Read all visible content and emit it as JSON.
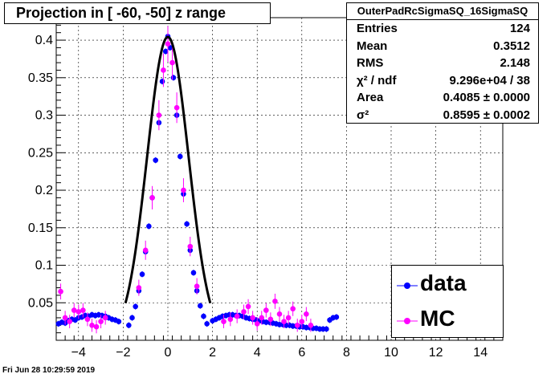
{
  "title": "Projection in [ -60, -50] z range",
  "stats": {
    "name": "OuterPadRcSigmaSQ_16SigmaSQ",
    "rows": [
      {
        "key": "Entries",
        "value": "124"
      },
      {
        "key": "Mean",
        "value": "0.3512"
      },
      {
        "key": "RMS",
        "value": "2.148"
      },
      {
        "key": "χ² / ndf",
        "value": "9.296e+04 / 38"
      },
      {
        "key": "Area",
        "value": "0.4085  ± 0.0000"
      },
      {
        "key": "σ²",
        "value": "0.8595  ± 0.0002"
      }
    ]
  },
  "legend": [
    {
      "label": "data",
      "color": "#0000ff"
    },
    {
      "label": "MC",
      "color": "#ff00ff"
    }
  ],
  "timestamp": "Fri Jun 28 10:29:59 2019",
  "chart_data": {
    "type": "scatter",
    "xlim": [
      -5,
      15
    ],
    "ylim": [
      0,
      0.43
    ],
    "xticks": [
      -4,
      -2,
      0,
      2,
      4,
      6,
      8,
      10,
      12,
      14
    ],
    "xtick_labels": [
      "−4",
      "−2",
      "0",
      "2",
      "4",
      "6",
      "8",
      "10",
      "12",
      "14"
    ],
    "yticks": [
      0.05,
      0.1,
      0.15,
      0.2,
      0.25,
      0.3,
      0.35,
      0.4
    ],
    "ytick_labels": [
      "0.05",
      "0.1",
      "0.15",
      "0.2",
      "0.25",
      "0.3",
      "0.35",
      "0.4"
    ],
    "grid": true,
    "fit_curve": {
      "type": "gaussian",
      "mean": 0.0,
      "area": 0.4085,
      "sigma2": 0.8595,
      "x_range": [
        -1.9,
        1.9
      ],
      "color": "#000000"
    },
    "series": [
      {
        "name": "data",
        "color": "#0000ff",
        "points": [
          [
            -4.9,
            0.022
          ],
          [
            -4.75,
            0.024
          ],
          [
            -4.6,
            0.023
          ],
          [
            -4.45,
            0.026
          ],
          [
            -4.3,
            0.028
          ],
          [
            -4.15,
            0.027
          ],
          [
            -4.0,
            0.03
          ],
          [
            -3.85,
            0.031
          ],
          [
            -3.7,
            0.033
          ],
          [
            -3.55,
            0.032
          ],
          [
            -3.4,
            0.034
          ],
          [
            -3.25,
            0.033
          ],
          [
            -3.1,
            0.034
          ],
          [
            -2.95,
            0.033
          ],
          [
            -2.8,
            0.032
          ],
          [
            -2.65,
            0.03
          ],
          [
            -2.5,
            0.028
          ],
          [
            -2.35,
            0.027
          ],
          [
            -2.2,
            0.025
          ],
          [
            -1.75,
            0.02
          ],
          [
            -1.6,
            0.03
          ],
          [
            -1.45,
            0.045
          ],
          [
            -1.3,
            0.066
          ],
          [
            -1.15,
            0.088
          ],
          [
            -1.0,
            0.118
          ],
          [
            -0.85,
            0.152
          ],
          [
            -0.7,
            0.19
          ],
          [
            -0.55,
            0.24
          ],
          [
            -0.4,
            0.29
          ],
          [
            -0.25,
            0.345
          ],
          [
            -0.1,
            0.385
          ],
          [
            0.0,
            0.405
          ],
          [
            0.1,
            0.39
          ],
          [
            0.25,
            0.35
          ],
          [
            0.4,
            0.3
          ],
          [
            0.55,
            0.245
          ],
          [
            0.7,
            0.195
          ],
          [
            0.85,
            0.155
          ],
          [
            1.0,
            0.12
          ],
          [
            1.15,
            0.09
          ],
          [
            1.3,
            0.066
          ],
          [
            1.45,
            0.046
          ],
          [
            1.6,
            0.032
          ],
          [
            1.75,
            0.022
          ],
          [
            2.0,
            0.026
          ],
          [
            2.15,
            0.028
          ],
          [
            2.3,
            0.03
          ],
          [
            2.45,
            0.032
          ],
          [
            2.6,
            0.033
          ],
          [
            2.75,
            0.034
          ],
          [
            2.9,
            0.034
          ],
          [
            3.05,
            0.033
          ],
          [
            3.2,
            0.033
          ],
          [
            3.35,
            0.032
          ],
          [
            3.5,
            0.03
          ],
          [
            3.65,
            0.029
          ],
          [
            3.8,
            0.028
          ],
          [
            3.95,
            0.027
          ],
          [
            4.1,
            0.026
          ],
          [
            4.25,
            0.025
          ],
          [
            4.4,
            0.024
          ],
          [
            4.55,
            0.024
          ],
          [
            4.7,
            0.023
          ],
          [
            4.85,
            0.022
          ],
          [
            5.0,
            0.021
          ],
          [
            5.15,
            0.021
          ],
          [
            5.3,
            0.02
          ],
          [
            5.45,
            0.02
          ],
          [
            5.6,
            0.019
          ],
          [
            5.75,
            0.019
          ],
          [
            5.9,
            0.018
          ],
          [
            6.05,
            0.018
          ],
          [
            6.2,
            0.017
          ],
          [
            6.35,
            0.017
          ],
          [
            6.5,
            0.016
          ],
          [
            6.65,
            0.016
          ],
          [
            6.8,
            0.015
          ],
          [
            6.95,
            0.015
          ],
          [
            7.1,
            0.015
          ],
          [
            7.25,
            0.027
          ],
          [
            7.4,
            0.03
          ],
          [
            7.55,
            0.031
          ]
        ]
      },
      {
        "name": "MC",
        "color": "#ff00ff",
        "points": [
          [
            -4.8,
            0.065
          ],
          [
            -4.6,
            0.03
          ],
          [
            -4.4,
            0.025
          ],
          [
            -4.2,
            0.04
          ],
          [
            -4.0,
            0.038
          ],
          [
            -3.8,
            0.04
          ],
          [
            -3.6,
            0.028
          ],
          [
            -3.4,
            0.02
          ],
          [
            -3.2,
            0.018
          ],
          [
            -3.0,
            0.025
          ],
          [
            -2.8,
            0.03
          ],
          [
            -1.3,
            0.07
          ],
          [
            -1.0,
            0.12
          ],
          [
            -0.7,
            0.19
          ],
          [
            -0.4,
            0.3
          ],
          [
            -0.2,
            0.36
          ],
          [
            0.0,
            0.395
          ],
          [
            0.2,
            0.37
          ],
          [
            0.4,
            0.31
          ],
          [
            0.7,
            0.2
          ],
          [
            1.0,
            0.125
          ],
          [
            1.3,
            0.072
          ],
          [
            2.5,
            0.025
          ],
          [
            2.8,
            0.028
          ],
          [
            3.1,
            0.032
          ],
          [
            3.4,
            0.038
          ],
          [
            3.6,
            0.045
          ],
          [
            3.8,
            0.03
          ],
          [
            4.0,
            0.022
          ],
          [
            4.2,
            0.03
          ],
          [
            4.4,
            0.04
          ],
          [
            4.6,
            0.028
          ],
          [
            4.8,
            0.052
          ],
          [
            5.0,
            0.035
          ],
          [
            5.2,
            0.025
          ],
          [
            5.4,
            0.03
          ],
          [
            5.6,
            0.042
          ],
          [
            5.8,
            0.02
          ],
          [
            6.0,
            0.025
          ],
          [
            6.2,
            0.035
          ],
          [
            6.4,
            0.02
          ]
        ]
      }
    ]
  }
}
